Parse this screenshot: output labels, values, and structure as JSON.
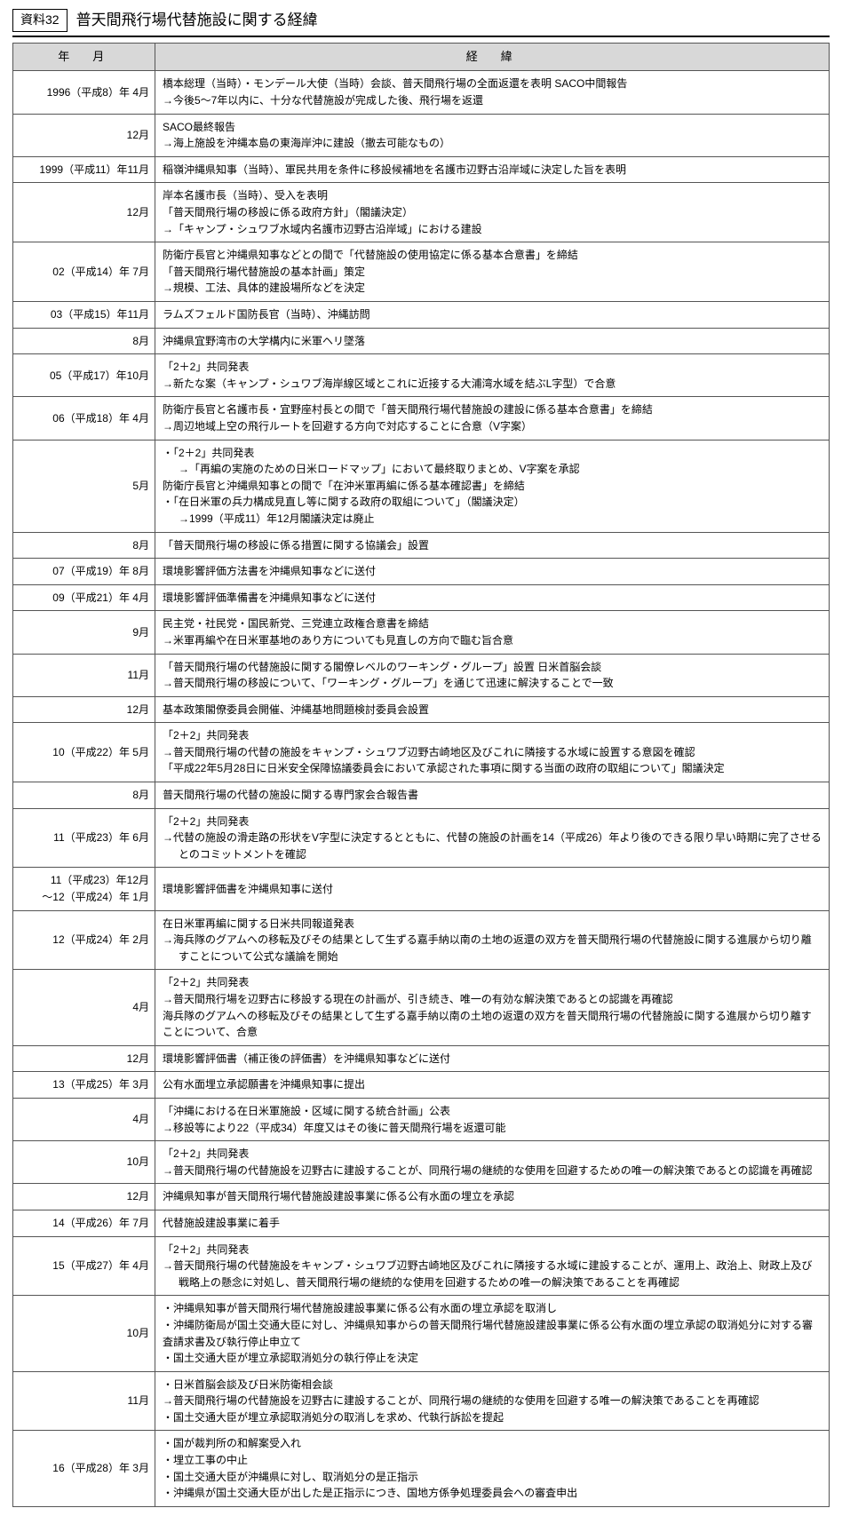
{
  "badge": "資料32",
  "title": "普天間飛行場代替施設に関する経緯",
  "columns": {
    "date": "年　月",
    "desc": "経　緯"
  },
  "rows": [
    {
      "date": "1996（平成8）年 4月",
      "desc": [
        "橋本総理（当時）・モンデール大使（当時）会談、普天間飛行場の全面返還を表明 SACO中間報告",
        "　→今後5～7年以内に、十分な代替施設が完成した後、飛行場を返還"
      ]
    },
    {
      "date": "12月",
      "desc": [
        "SACO最終報告",
        "　→海上施設を沖縄本島の東海岸沖に建設（撤去可能なもの）"
      ]
    },
    {
      "date": "1999（平成11）年11月",
      "desc": [
        "稲嶺沖縄県知事（当時）、軍民共用を条件に移設候補地を名護市辺野古沿岸域に決定した旨を表明"
      ]
    },
    {
      "date": "12月",
      "desc": [
        "岸本名護市長（当時）、受入を表明",
        "「普天間飛行場の移設に係る政府方針」（閣議決定）",
        "　→「キャンプ・シュワブ水域内名護市辺野古沿岸域」における建設"
      ]
    },
    {
      "date": "02（平成14）年 7月",
      "desc": [
        "防衛庁長官と沖縄県知事などとの間で「代替施設の使用協定に係る基本合意書」を締結",
        "「普天間飛行場代替施設の基本計画」策定",
        "　→規模、工法、具体的建設場所などを決定"
      ]
    },
    {
      "date": "03（平成15）年11月",
      "desc": [
        "ラムズフェルド国防長官（当時）、沖縄訪問"
      ]
    },
    {
      "date": "8月",
      "desc": [
        "沖縄県宜野湾市の大学構内に米軍ヘリ墜落"
      ]
    },
    {
      "date": "05（平成17）年10月",
      "desc": [
        "「2＋2」共同発表",
        "　→新たな案（キャンプ・シュワブ海岸線区域とこれに近接する大浦湾水域を結ぶL字型）で合意"
      ]
    },
    {
      "date": "06（平成18）年 4月",
      "desc": [
        "防衛庁長官と名護市長・宜野座村長との間で「普天間飛行場代替施設の建設に係る基本合意書」を締結",
        "　→周辺地域上空の飛行ルートを回避する方向で対応することに合意（V字案）"
      ]
    },
    {
      "date": "5月",
      "desc": [
        "・「2＋2」共同発表",
        "　　→「再編の実施のための日米ロードマップ」において最終取りまとめ、V字案を承認",
        "防衛庁長官と沖縄県知事との間で「在沖米軍再編に係る基本確認書」を締結",
        "・「在日米軍の兵力構成見直し等に関する政府の取組について」（閣議決定）",
        "　　→1999（平成11）年12月閣議決定は廃止"
      ]
    },
    {
      "date": "8月",
      "desc": [
        "「普天間飛行場の移設に係る措置に関する協議会」設置"
      ]
    },
    {
      "date": "07（平成19）年 8月",
      "desc": [
        "環境影響評価方法書を沖縄県知事などに送付"
      ]
    },
    {
      "date": "09（平成21）年 4月",
      "desc": [
        "環境影響評価準備書を沖縄県知事などに送付"
      ]
    },
    {
      "date": "9月",
      "desc": [
        "民主党・社民党・国民新党、三党連立政権合意書を締結",
        "　→米軍再編や在日米軍基地のあり方についても見直しの方向で臨む旨合意"
      ]
    },
    {
      "date": "11月",
      "desc": [
        "「普天間飛行場の代替施設に関する閣僚レベルのワーキング・グループ」設置 日米首脳会談",
        "　→普天間飛行場の移設について、「ワーキング・グループ」を通じて迅速に解決することで一致"
      ]
    },
    {
      "date": "12月",
      "desc": [
        "基本政策閣僚委員会開催、沖縄基地問題検討委員会設置"
      ]
    },
    {
      "date": "10（平成22）年 5月",
      "desc": [
        "「2＋2」共同発表",
        "　→普天間飛行場の代替の施設をキャンプ・シュワブ辺野古崎地区及びこれに隣接する水域に設置する意図を確認",
        "「平成22年5月28日に日米安全保障協議委員会において承認された事項に関する当面の政府の取組について」閣議決定"
      ]
    },
    {
      "date": "8月",
      "desc": [
        "普天間飛行場の代替の施設に関する専門家会合報告書"
      ]
    },
    {
      "date": "11（平成23）年 6月",
      "desc": [
        "「2＋2」共同発表",
        "　→代替の施設の滑走路の形状をV字型に決定するとともに、代替の施設の計画を14（平成26）年より後のできる限り早い時期に完了させるとのコミットメントを確認"
      ]
    },
    {
      "date": "11（平成23）年12月\n～12（平成24）年 1月",
      "desc": [
        "環境影響評価書を沖縄県知事に送付"
      ]
    },
    {
      "date": "12（平成24）年 2月",
      "desc": [
        "在日米軍再編に関する日米共同報道発表",
        "　→海兵隊のグアムへの移転及びその結果として生ずる嘉手納以南の土地の返還の双方を普天間飛行場の代替施設に関する進展から切り離すことについて公式な議論を開始"
      ]
    },
    {
      "date": "4月",
      "desc": [
        "「2＋2」共同発表",
        "　→普天間飛行場を辺野古に移設する現在の計画が、引き続き、唯一の有効な解決策であるとの認識を再確認",
        "海兵隊のグアムへの移転及びその結果として生ずる嘉手納以南の土地の返還の双方を普天間飛行場の代替施設に関する進展から切り離すことについて、合意"
      ]
    },
    {
      "date": "12月",
      "desc": [
        "環境影響評価書（補正後の評価書）を沖縄県知事などに送付"
      ]
    },
    {
      "date": "13（平成25）年 3月",
      "desc": [
        "公有水面埋立承認願書を沖縄県知事に提出"
      ]
    },
    {
      "date": "4月",
      "desc": [
        "「沖縄における在日米軍施設・区域に関する統合計画」公表",
        "　→移設等により22（平成34）年度又はその後に普天間飛行場を返還可能"
      ]
    },
    {
      "date": "10月",
      "desc": [
        "「2＋2」共同発表",
        "　→普天間飛行場の代替施設を辺野古に建設することが、同飛行場の継続的な使用を回避するための唯一の解決策であるとの認識を再確認"
      ]
    },
    {
      "date": "12月",
      "desc": [
        "沖縄県知事が普天間飛行場代替施設建設事業に係る公有水面の埋立を承認"
      ]
    },
    {
      "date": "14（平成26）年 7月",
      "desc": [
        "代替施設建設事業に着手"
      ]
    },
    {
      "date": "15（平成27）年 4月",
      "desc": [
        "「2＋2」共同発表",
        "　→普天間飛行場の代替施設をキャンプ・シュワブ辺野古崎地区及びこれに隣接する水域に建設することが、運用上、政治上、財政上及び戦略上の懸念に対処し、普天間飛行場の継続的な使用を回避するための唯一の解決策であることを再確認"
      ]
    },
    {
      "date": "10月",
      "desc": [
        "・沖縄県知事が普天間飛行場代替施設建設事業に係る公有水面の埋立承認を取消し",
        "・沖縄防衛局が国土交通大臣に対し、沖縄県知事からの普天間飛行場代替施設建設事業に係る公有水面の埋立承認の取消処分に対する審査請求書及び執行停止申立て",
        "・国土交通大臣が埋立承認取消処分の執行停止を決定"
      ]
    },
    {
      "date": "11月",
      "desc": [
        "・日米首脳会談及び日米防衛相会談",
        "　→普天間飛行場の代替施設を辺野古に建設することが、同飛行場の継続的な使用を回避する唯一の解決策であることを再確認",
        "・国土交通大臣が埋立承認取消処分の取消しを求め、代執行訴訟を提起"
      ]
    },
    {
      "date": "16（平成28）年 3月",
      "desc": [
        "・国が裁判所の和解案受入れ",
        "・埋立工事の中止",
        "・国土交通大臣が沖縄県に対し、取消処分の是正指示",
        "・沖縄県が国土交通大臣が出した是正指示につき、国地方係争処理委員会への審査申出"
      ]
    }
  ]
}
